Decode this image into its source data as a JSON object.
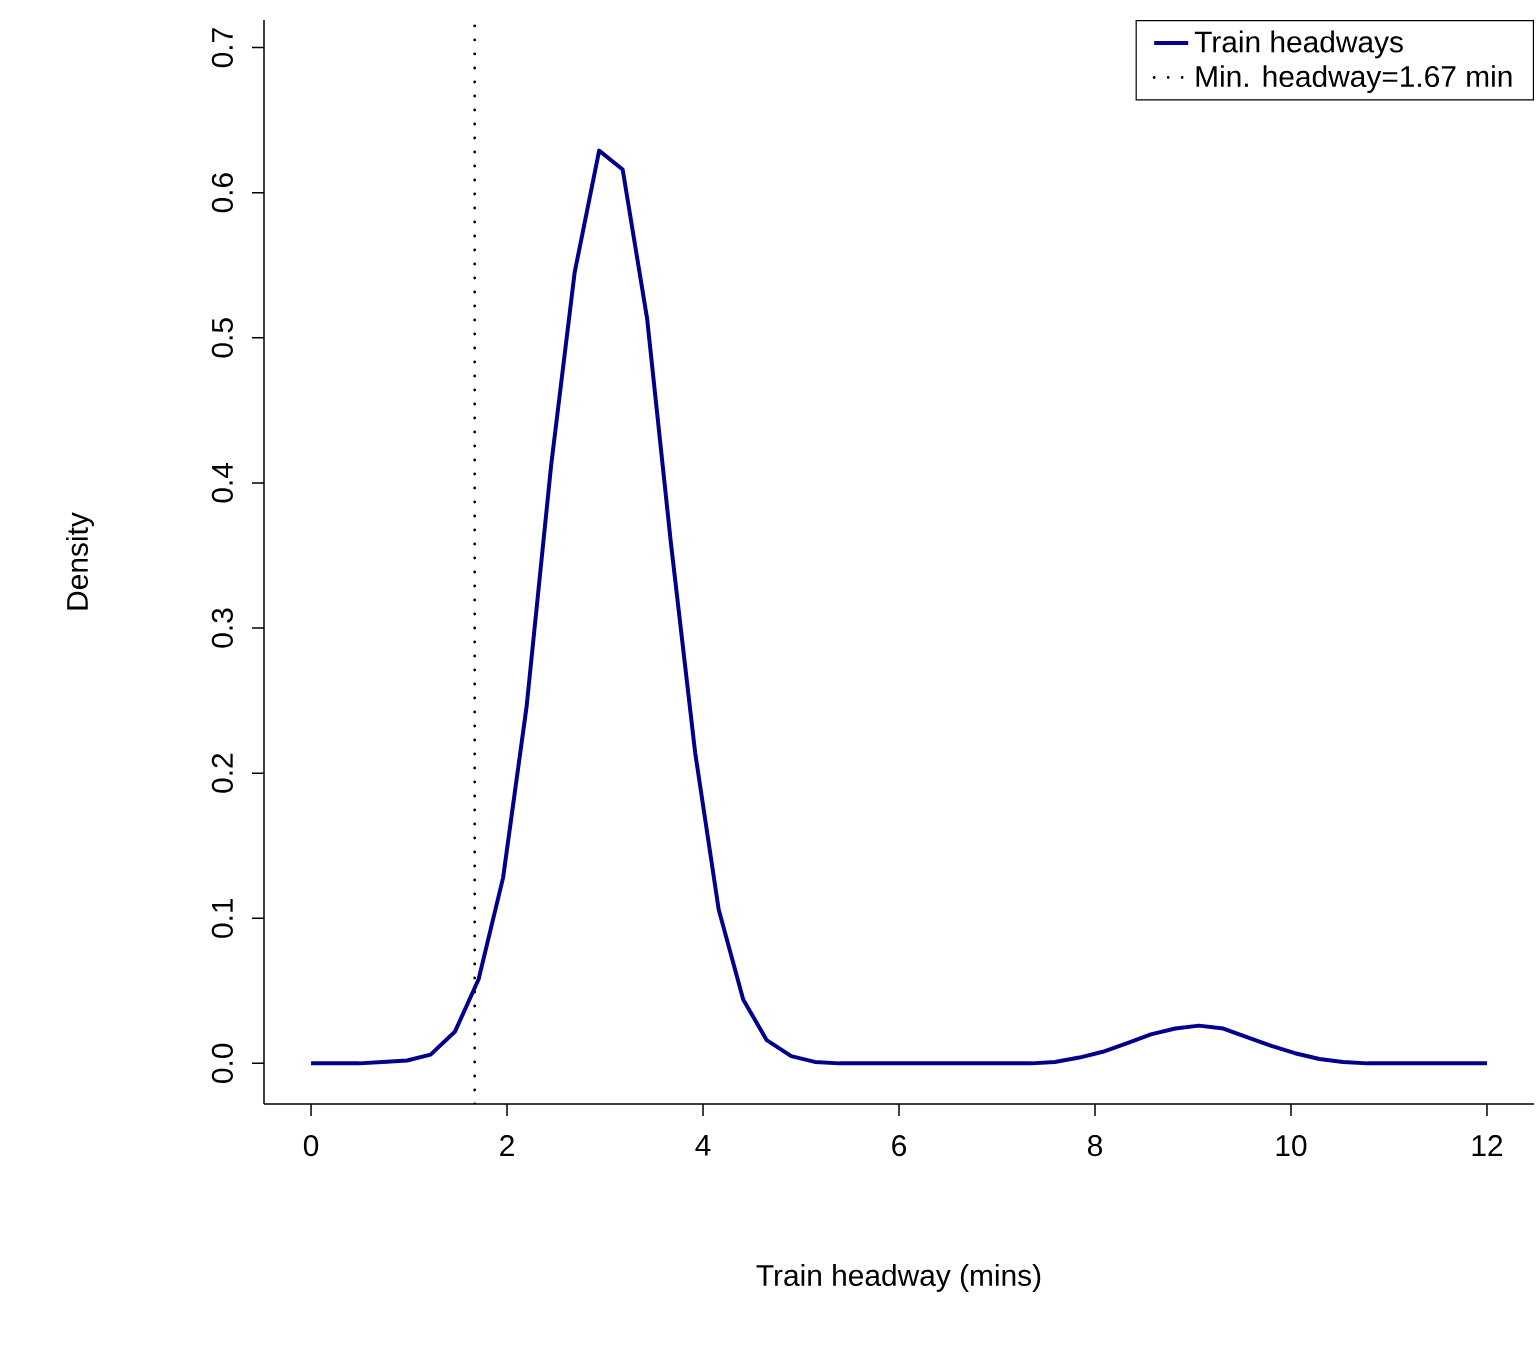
{
  "chart_data": {
    "type": "line",
    "xlabel": "Train headway (mins)",
    "ylabel": "Density",
    "x": [
      0,
      0.24,
      0.49,
      0.73,
      0.98,
      1.22,
      1.47,
      1.71,
      1.96,
      2.2,
      2.45,
      2.69,
      2.94,
      3.18,
      3.43,
      3.67,
      3.92,
      4.16,
      4.41,
      4.65,
      4.9,
      5.14,
      5.39,
      5.63,
      5.88,
      6.12,
      6.37,
      6.61,
      6.86,
      7.1,
      7.35,
      7.59,
      7.84,
      8.08,
      8.33,
      8.57,
      8.82,
      9.06,
      9.31,
      9.55,
      9.8,
      10.04,
      10.29,
      10.53,
      10.78,
      11.02,
      11.27,
      11.51,
      11.76,
      12
    ],
    "series": [
      {
        "name": "Train headways",
        "color": "#00008b",
        "values": [
          0,
          0,
          0,
          0.001,
          0.002,
          0.006,
          0.022,
          0.058,
          0.128,
          0.246,
          0.412,
          0.545,
          0.629,
          0.616,
          0.513,
          0.36,
          0.214,
          0.106,
          0.044,
          0.016,
          0.005,
          0.001,
          0,
          0,
          0,
          0,
          0,
          0,
          0,
          0,
          0,
          0.001,
          0.004,
          0.008,
          0.014,
          0.02,
          0.024,
          0.026,
          0.024,
          0.018,
          0.012,
          0.007,
          0.003,
          0.001,
          0,
          0,
          0,
          0,
          0,
          0
        ]
      }
    ],
    "ref_lines": [
      {
        "axis": "x",
        "value": 1.67,
        "label": "Min. headway=1.67 min",
        "color": "#000000",
        "line_style": "dotted"
      }
    ],
    "xlim": [
      -0.48,
      12.48
    ],
    "ylim": [
      -0.028,
      0.719
    ],
    "xticks": [
      0,
      2,
      4,
      6,
      8,
      10,
      12
    ],
    "yticks": [
      {
        "value": 0,
        "label": "0.0"
      },
      {
        "value": 0.1,
        "label": "0.1"
      },
      {
        "value": 0.2,
        "label": "0.2"
      },
      {
        "value": 0.3,
        "label": "0.3"
      },
      {
        "value": 0.4,
        "label": "0.4"
      },
      {
        "value": 0.5,
        "label": "0.5"
      },
      {
        "value": 0.6,
        "label": "0.6"
      },
      {
        "value": 0.7,
        "label": "0.7"
      }
    ],
    "grid": false,
    "legend": "top right",
    "marker": "none",
    "line_style": "solid"
  }
}
